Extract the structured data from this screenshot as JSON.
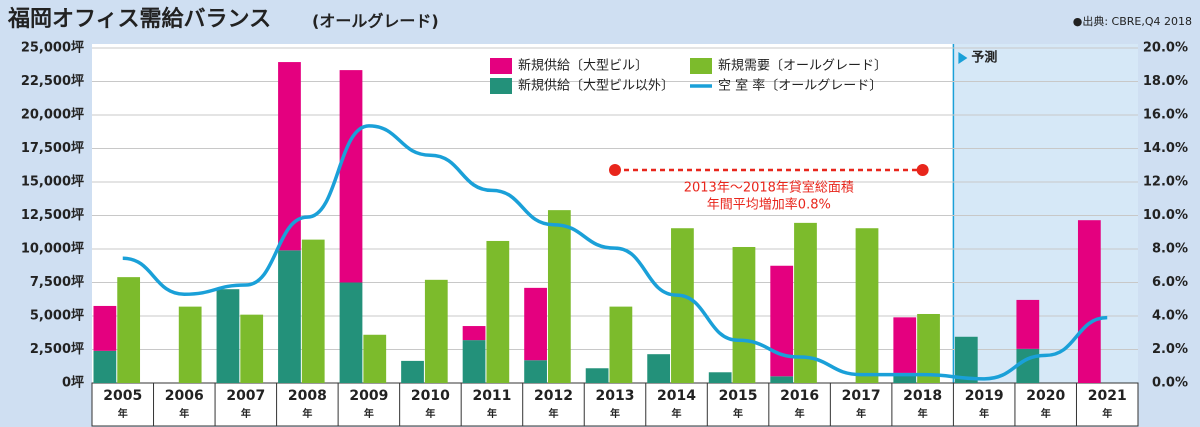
{
  "chart_data": {
    "type": "bar",
    "title": "福岡オフィス需給バランス",
    "subtitle": "(オールグレード)",
    "source": "●出典: CBRE,Q4 2018",
    "categories": [
      "2005",
      "2006",
      "2007",
      "2008",
      "2009",
      "2010",
      "2011",
      "2012",
      "2013",
      "2014",
      "2015",
      "2016",
      "2017",
      "2018",
      "2019",
      "2020",
      "2021"
    ],
    "category_suffix": "年",
    "series": [
      {
        "name": "新規供給〔大型ビル以外〕",
        "color": "#23917a",
        "stack": "supply",
        "values": [
          2400,
          0,
          7000,
          9900,
          7500,
          1650,
          3200,
          1700,
          1100,
          2150,
          800,
          500,
          0,
          750,
          3450,
          2550,
          0
        ]
      },
      {
        "name": "新規供給〔大型ビル〕",
        "color": "#e4007f",
        "stack": "supply",
        "values": [
          3350,
          0,
          0,
          14050,
          15850,
          0,
          1050,
          5400,
          0,
          0,
          0,
          8250,
          0,
          4150,
          0,
          3650,
          12150
        ]
      },
      {
        "name": "新規需要〔オールグレード〕",
        "color": "#7cbb2c",
        "values": [
          7900,
          5700,
          5100,
          10700,
          3600,
          7700,
          10600,
          12900,
          5700,
          11550,
          10150,
          11950,
          11550,
          5150,
          0,
          0,
          0
        ]
      },
      {
        "name": "空 室 率〔オールグレード〕",
        "color": "#1aa0d8",
        "type": "line",
        "axis": "y2",
        "values": [
          7.45,
          5.3,
          5.85,
          9.9,
          15.35,
          13.6,
          11.5,
          9.45,
          8.05,
          5.25,
          2.55,
          1.55,
          0.5,
          0.5,
          0.25,
          1.65,
          3.9
        ]
      }
    ],
    "ylim": [
      0,
      25000
    ],
    "yticks": [
      {
        "value": 0,
        "label": "0坪"
      },
      {
        "value": 2500,
        "label": "2,500坪"
      },
      {
        "value": 5000,
        "label": "5,000坪"
      },
      {
        "value": 7500,
        "label": "7,500坪"
      },
      {
        "value": 10000,
        "label": "10,000坪"
      },
      {
        "value": 12500,
        "label": "12,500坪"
      },
      {
        "value": 15000,
        "label": "15,000坪"
      },
      {
        "value": 17500,
        "label": "17,500坪"
      },
      {
        "value": 20000,
        "label": "20,000坪"
      },
      {
        "value": 22500,
        "label": "22,500坪"
      },
      {
        "value": 25000,
        "label": "25,000坪"
      }
    ],
    "y2lim": [
      0,
      20
    ],
    "y2ticks": [
      {
        "value": 0,
        "label": "0.0%"
      },
      {
        "value": 2,
        "label": "2.0%"
      },
      {
        "value": 4,
        "label": "4.0%"
      },
      {
        "value": 6,
        "label": "6.0%"
      },
      {
        "value": 8,
        "label": "8.0%"
      },
      {
        "value": 10,
        "label": "10.0%"
      },
      {
        "value": 12,
        "label": "12.0%"
      },
      {
        "value": 14,
        "label": "14.0%"
      },
      {
        "value": 16,
        "label": "16.0%"
      },
      {
        "value": 18,
        "label": "18.0%"
      },
      {
        "value": 20,
        "label": "20.0%"
      }
    ],
    "grid": true,
    "forecast_label": "予測",
    "annotation": [
      "2013年〜2018年貸室総面積",
      "年間平均増加率0.8%"
    ]
  }
}
